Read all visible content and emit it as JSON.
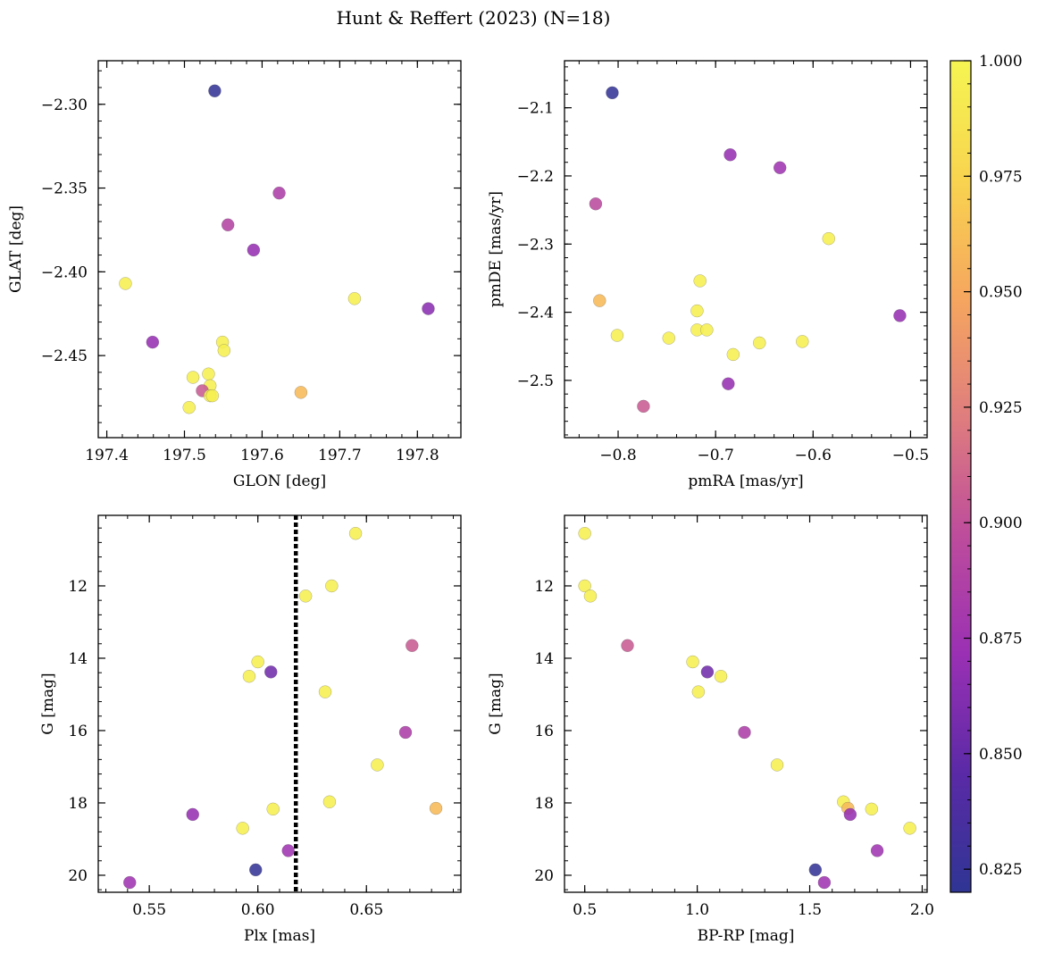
{
  "colormap": {
    "name": "plasma",
    "min": 0.82,
    "max": 1.0,
    "ticks": [
      0.825,
      0.85,
      0.875,
      0.9,
      0.925,
      0.95,
      0.975,
      1.0
    ],
    "tick_labels": [
      "0.825",
      "0.850",
      "0.875",
      "0.900",
      "0.925",
      "0.950",
      "0.975",
      "1.000"
    ],
    "stops": [
      "#2f3594",
      "#5a2aa6",
      "#9a30b4",
      "#bd4c9c",
      "#df7d7e",
      "#f6a65f",
      "#f8d44f",
      "#f5f552"
    ]
  },
  "title": "Hunt & Reffert (2023) (N=18)",
  "chart_data": [
    {
      "type": "scatter",
      "xlabel": "GLON [deg]",
      "ylabel": "GLAT [deg]",
      "xlim": [
        197.389,
        197.856
      ],
      "ylim": [
        -2.499,
        -2.274
      ],
      "y_inverted": false,
      "xticks": [
        197.4,
        197.5,
        197.6,
        197.7,
        197.8
      ],
      "xtick_labels": [
        "197.4",
        "197.5",
        "197.6",
        "197.7",
        "197.8"
      ],
      "yticks": [
        -2.3,
        -2.35,
        -2.4,
        -2.45
      ],
      "ytick_labels": [
        "−2.30",
        "−2.35",
        "−2.40",
        "−2.45"
      ],
      "x": [
        197.539,
        197.622,
        197.556,
        197.589,
        197.424,
        197.719,
        197.814,
        197.459,
        197.549,
        197.551,
        197.531,
        197.511,
        197.533,
        197.523,
        197.533,
        197.536,
        197.65,
        197.506
      ],
      "y": [
        -2.292,
        -2.353,
        -2.372,
        -2.387,
        -2.407,
        -2.416,
        -2.422,
        -2.442,
        -2.442,
        -2.447,
        -2.461,
        -2.463,
        -2.468,
        -2.471,
        -2.474,
        -2.474,
        -2.472,
        -2.481
      ],
      "c": [
        0.823,
        0.885,
        0.89,
        0.87,
        0.995,
        0.995,
        0.865,
        0.87,
        0.995,
        0.995,
        0.995,
        0.995,
        0.995,
        0.905,
        0.995,
        0.995,
        0.96,
        0.995
      ]
    },
    {
      "type": "scatter",
      "xlabel": "pmRA [mas/yr]",
      "ylabel": "pmDE [mas/yr]",
      "xlim": [
        -0.855,
        -0.483
      ],
      "ylim": [
        -2.584,
        -2.031
      ],
      "y_inverted": false,
      "xticks": [
        -0.8,
        -0.7,
        -0.6,
        -0.5
      ],
      "xtick_labels": [
        "−0.8",
        "−0.7",
        "−0.6",
        "−0.5"
      ],
      "yticks": [
        -2.1,
        -2.2,
        -2.3,
        -2.4,
        -2.5
      ],
      "ytick_labels": [
        "−2.1",
        "−2.2",
        "−2.3",
        "−2.4",
        "−2.5"
      ],
      "x": [
        -0.806,
        -0.685,
        -0.634,
        -0.823,
        -0.584,
        -0.716,
        -0.819,
        -0.719,
        -0.511,
        -0.719,
        -0.709,
        -0.801,
        -0.748,
        -0.655,
        -0.611,
        -0.682,
        -0.687,
        -0.774
      ],
      "y": [
        -2.078,
        -2.169,
        -2.188,
        -2.241,
        -2.292,
        -2.354,
        -2.383,
        -2.398,
        -2.405,
        -2.426,
        -2.426,
        -2.434,
        -2.438,
        -2.445,
        -2.443,
        -2.462,
        -2.505,
        -2.538
      ],
      "c": [
        0.823,
        0.87,
        0.875,
        0.895,
        0.995,
        0.995,
        0.96,
        0.995,
        0.87,
        0.995,
        0.995,
        0.995,
        0.995,
        0.995,
        0.995,
        0.995,
        0.87,
        0.905
      ]
    },
    {
      "type": "scatter",
      "xlabel": "Plx [mas]",
      "ylabel": "G [mag]",
      "xlim": [
        0.5265,
        0.6935
      ],
      "ylim": [
        20.47,
        10.05
      ],
      "y_inverted": true,
      "vline": 0.6175,
      "xticks": [
        0.55,
        0.6,
        0.65
      ],
      "xtick_labels": [
        "0.55",
        "0.60",
        "0.65"
      ],
      "yticks": [
        12,
        14,
        16,
        18,
        20
      ],
      "ytick_labels": [
        "12",
        "14",
        "16",
        "18",
        "20"
      ],
      "x": [
        0.645,
        0.634,
        0.622,
        0.671,
        0.6,
        0.606,
        0.596,
        0.631,
        0.668,
        0.655,
        0.633,
        0.607,
        0.682,
        0.57,
        0.593,
        0.614,
        0.599,
        0.541
      ],
      "y": [
        10.55,
        12.0,
        12.28,
        13.65,
        14.1,
        14.38,
        14.5,
        14.93,
        16.05,
        16.95,
        17.97,
        18.17,
        18.15,
        18.32,
        18.7,
        19.32,
        19.85,
        20.2
      ],
      "c": [
        0.995,
        0.995,
        0.995,
        0.905,
        0.995,
        0.855,
        0.995,
        0.995,
        0.885,
        0.995,
        0.995,
        0.995,
        0.96,
        0.87,
        0.995,
        0.875,
        0.823,
        0.875
      ]
    },
    {
      "type": "scatter",
      "xlabel": "BP-RP [mag]",
      "ylabel": "G [mag]",
      "xlim": [
        0.41,
        2.022
      ],
      "ylim": [
        20.47,
        10.05
      ],
      "y_inverted": true,
      "xticks": [
        0.5,
        1.0,
        1.5,
        2.0
      ],
      "xtick_labels": [
        "0.5",
        "1.0",
        "1.5",
        "2.0"
      ],
      "yticks": [
        12,
        14,
        16,
        18,
        20
      ],
      "ytick_labels": [
        "12",
        "14",
        "16",
        "18",
        "20"
      ],
      "x": [
        0.5,
        0.5,
        0.525,
        0.69,
        0.98,
        1.045,
        1.105,
        1.005,
        1.21,
        1.355,
        1.65,
        1.67,
        1.68,
        1.775,
        1.945,
        1.8,
        1.525,
        1.565
      ],
      "y": [
        10.55,
        12.0,
        12.28,
        13.65,
        14.1,
        14.38,
        14.5,
        14.93,
        16.05,
        16.95,
        17.97,
        18.15,
        18.32,
        18.17,
        18.7,
        19.32,
        19.85,
        20.2
      ],
      "c": [
        0.995,
        0.995,
        0.995,
        0.905,
        0.995,
        0.855,
        0.995,
        0.995,
        0.885,
        0.995,
        0.995,
        0.96,
        0.87,
        0.995,
        0.995,
        0.875,
        0.823,
        0.875
      ]
    }
  ]
}
